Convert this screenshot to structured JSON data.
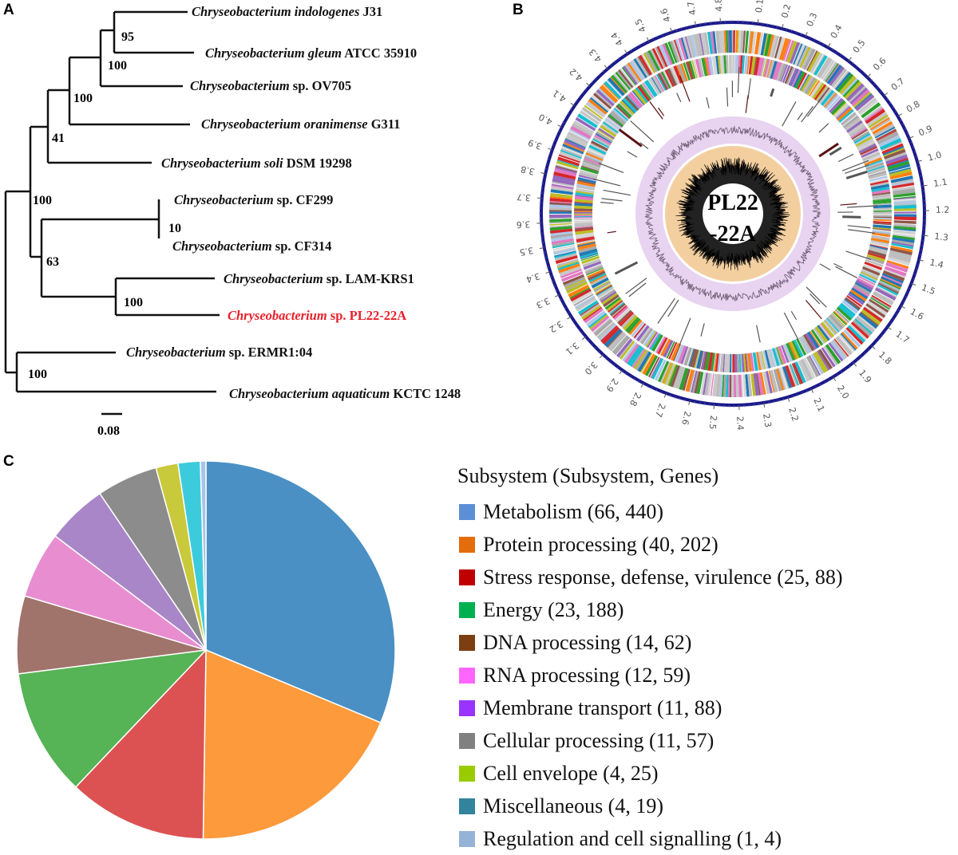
{
  "panels": {
    "a": "A",
    "b": "B",
    "c": "C"
  },
  "tree": {
    "taxa": [
      {
        "genus": "Chryseobacterium",
        "epithet": "indologenes",
        "strain": "J31",
        "highlight": false
      },
      {
        "genus": "Chryseobacterium",
        "epithet": "gleum",
        "strain": "ATCC 35910",
        "highlight": false
      },
      {
        "genus": "Chryseobacterium",
        "epithet": "",
        "strain": "sp. OV705",
        "highlight": false
      },
      {
        "genus": "Chryseobacterium",
        "epithet": "oranimense",
        "strain": "G311",
        "highlight": false
      },
      {
        "genus": "Chryseobacterium",
        "epithet": "soli",
        "strain": "DSM 19298",
        "highlight": false
      },
      {
        "genus": "Chryseobacterium",
        "epithet": "",
        "strain": "sp. CF299",
        "highlight": false
      },
      {
        "genus": "Chryseobacterium",
        "epithet": "",
        "strain": "sp. CF314",
        "highlight": false
      },
      {
        "genus": "Chryseobacterium",
        "epithet": "",
        "strain": "sp. LAM-KRS1",
        "highlight": false
      },
      {
        "genus": "Chryseobacterium",
        "epithet": "",
        "strain": "sp. PL22-22A",
        "highlight": true
      },
      {
        "genus": "Chryseobacterium",
        "epithet": "",
        "strain": "sp. ERMR1:04",
        "highlight": false
      },
      {
        "genus": "Chryseobacterium",
        "epithet": "aquaticum",
        "strain": "KCTC 1248",
        "highlight": false
      }
    ],
    "bootstrap": [
      "95",
      "100",
      "100",
      "41",
      "100",
      "10",
      "63",
      "100",
      "100"
    ],
    "scale_bar": "0.08",
    "highlight_color": "#e8202a"
  },
  "genome_map": {
    "center_label_line1": "PL22",
    "center_label_line2": "-22A",
    "ticks_mb": [
      "0.1",
      "0.2",
      "0.3",
      "0.4",
      "0.5",
      "0.6",
      "0.7",
      "0.8",
      "0.9",
      "1.0",
      "1.1",
      "1.2",
      "1.3",
      "1.4",
      "1.5",
      "1.6",
      "1.7",
      "1.8",
      "1.9",
      "2.0",
      "2.1",
      "2.2",
      "2.3",
      "2.4",
      "2.5",
      "2.6",
      "2.7",
      "2.8",
      "2.9",
      "3.0",
      "3.1",
      "3.2",
      "3.3",
      "3.4",
      "3.5",
      "3.6",
      "3.7",
      "3.8",
      "3.9",
      "4.0",
      "4.1",
      "4.2",
      "4.3",
      "4.4",
      "4.5",
      "4.6",
      "4.7",
      "4.8"
    ],
    "colors": {
      "backbone": "#1a1a8a",
      "gc_skew_ring": "#e8d3f0",
      "gc_content_ring": "#f3cfa0"
    },
    "feature_palette": [
      "#bdbdbd",
      "#bdbdbd",
      "#c8c8c8",
      "#a8a8a8",
      "#d5d5d5",
      "#1f77b4",
      "#ff7f0e",
      "#2ca02c",
      "#d62728",
      "#9467bd",
      "#8c564b",
      "#e377c2",
      "#17becf",
      "#bcbd22",
      "#aec7e8"
    ]
  },
  "chart_data": {
    "type": "pie",
    "title": "",
    "legend_title": "Subsystem (Subsystem, Genes)",
    "legend_position": "right",
    "start_angle": "top, clockwise",
    "slices": [
      {
        "label": "Metabolism (66, 440)",
        "name": "Metabolism",
        "subsystems": 66,
        "genes": 440,
        "color": "#4a90c4",
        "legend_color": "#5b8fd6"
      },
      {
        "label": "Protein processing (40, 202)",
        "name": "Protein processing",
        "subsystems": 40,
        "genes": 202,
        "color": "#fd9a3c",
        "legend_color": "#e46c0a"
      },
      {
        "label": "Stress response, defense, virulence (25, 88)",
        "name": "Stress response, defense, virulence",
        "subsystems": 25,
        "genes": 88,
        "color": "#dc5252",
        "legend_color": "#c00000"
      },
      {
        "label": "Energy (23, 188)",
        "name": "Energy",
        "subsystems": 23,
        "genes": 188,
        "color": "#56b356",
        "legend_color": "#00b050"
      },
      {
        "label": "DNA processing (14, 62)",
        "name": "DNA processing",
        "subsystems": 14,
        "genes": 62,
        "color": "#a0746a",
        "legend_color": "#7b3f12"
      },
      {
        "label": "RNA processing (12, 59)",
        "name": "RNA processing",
        "subsystems": 12,
        "genes": 59,
        "color": "#e88ed0",
        "legend_color": "#ff66ff"
      },
      {
        "label": "Membrane transport (11, 88)",
        "name": "Membrane transport",
        "subsystems": 11,
        "genes": 88,
        "color": "#a986c8",
        "legend_color": "#9933ff"
      },
      {
        "label": "Cellular processing (11, 57)",
        "name": "Cellular processing",
        "subsystems": 11,
        "genes": 57,
        "color": "#8c8c8c",
        "legend_color": "#808080"
      },
      {
        "label": "Cell envelope (4, 25)",
        "name": "Cell envelope",
        "subsystems": 4,
        "genes": 25,
        "color": "#c9c93c",
        "legend_color": "#99cc00"
      },
      {
        "label": "Miscellaneous (4, 19)",
        "name": "Miscellaneous",
        "subsystems": 4,
        "genes": 19,
        "color": "#3ccbdc",
        "legend_color": "#31849b"
      },
      {
        "label": "Regulation and cell signalling (1, 4)",
        "name": "Regulation and cell signalling",
        "subsystems": 1,
        "genes": 4,
        "color": "#a8c4e6",
        "legend_color": "#95b3d7"
      }
    ]
  }
}
